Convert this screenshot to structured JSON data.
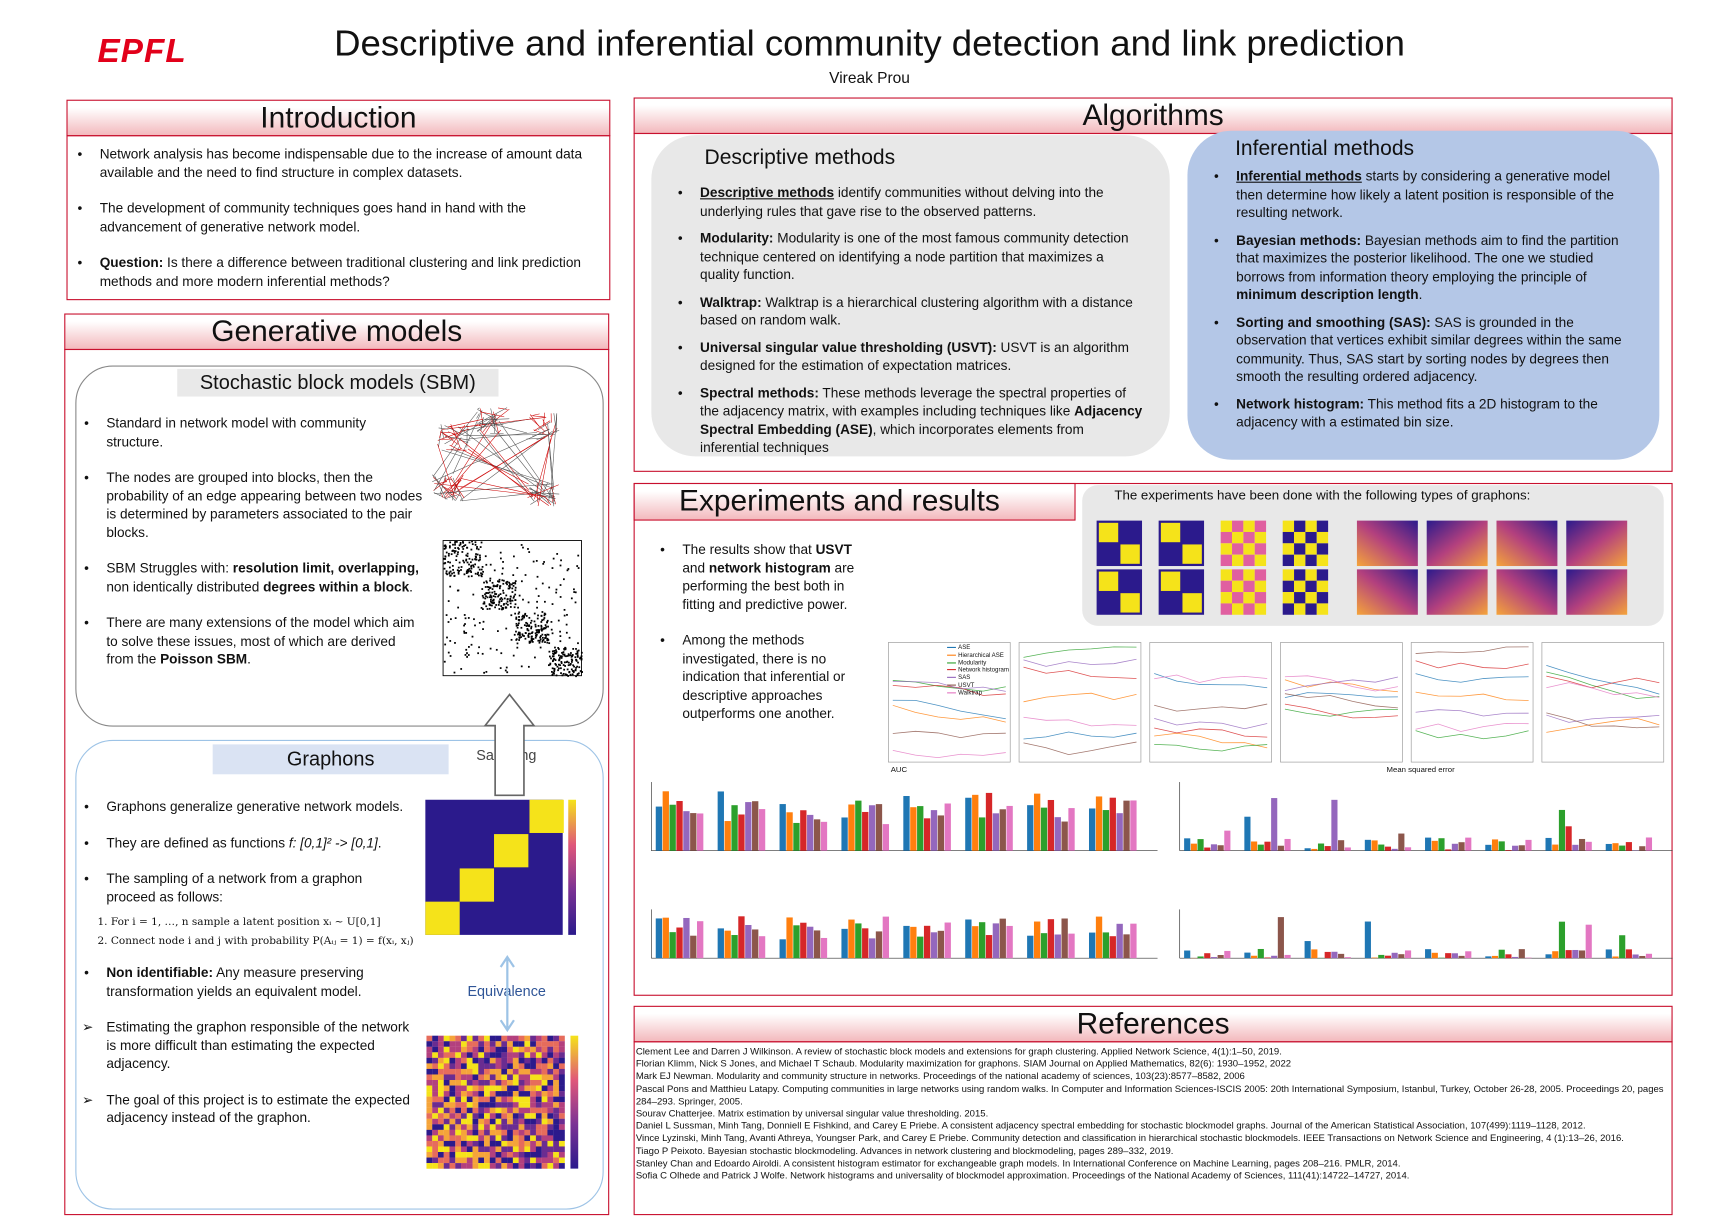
{
  "header": {
    "logo": "EPFL",
    "title": "Descriptive and inferential community detection and link prediction",
    "author": "Vireak Prou"
  },
  "introduction": {
    "heading": "Introduction",
    "bullets": [
      [
        "Network analysis has become indispensable due to the increase of amount data available and the need to find structure in complex datasets."
      ],
      [
        "The development of community techniques goes hand in hand with the advancement of generative network model."
      ],
      [
        {
          "text": "Question:",
          "bold": true
        },
        " Is there a difference between traditional clustering and link prediction methods and more modern inferential methods?"
      ]
    ]
  },
  "generative_models": {
    "heading": "Generative models",
    "sbm": {
      "heading": "Stochastic block models (SBM)",
      "bullets": [
        [
          "Standard in network model with community structure."
        ],
        [
          "The nodes are grouped into blocks, then the probability of an edge appearing between two nodes is determined by parameters associated to the pair blocks."
        ],
        [
          "SBM Struggles with: ",
          {
            "text": "resolution limit, overlapping,",
            "bold": true
          },
          " non identically distributed ",
          {
            "text": "degrees within a block",
            "bold": true
          },
          "."
        ],
        [
          "There are many extensions of the model which aim to solve these issues, most of which are derived from the ",
          {
            "text": "Poisson SBM",
            "bold": true
          },
          "."
        ]
      ]
    },
    "sampling_label": "Sampling",
    "graphons": {
      "heading": "Graphons",
      "bullets": [
        [
          "Graphons generalize generative network models."
        ],
        [
          "They are defined as functions ",
          {
            "text": "f: [0,1]² -> [0,1]",
            "italic": true
          },
          "."
        ],
        [
          "The sampling of a network from a graphon proceed as follows:"
        ]
      ],
      "steps": [
        "1.  For i = 1, …, n sample a latent position xᵢ ~ U[0,1]",
        "2.  Connect node i and j with probability P(Aᵢⱼ = 1) = f(xᵢ, xⱼ)"
      ],
      "bullets_after": [
        [
          {
            "text": "Non identifiable:",
            "bold": true
          },
          " Any measure preserving transformation yields an equivalent model."
        ]
      ],
      "arrow_bullets": [
        [
          "Estimating the graphon responsible of the network is more difficult than estimating the expected adjacency."
        ],
        [
          "The goal of this project is to estimate the expected adjacency instead of the graphon."
        ]
      ]
    },
    "equivalence_label": "Equivalence"
  },
  "algorithms": {
    "heading": "Algorithms",
    "descriptive": {
      "heading": "Descriptive methods",
      "bullets": [
        [
          {
            "text": "Descriptive methods",
            "bold": true,
            "underline": true
          },
          " identify communities without delving into the underlying rules that gave rise to the observed patterns."
        ],
        [
          {
            "text": "Modularity:",
            "bold": true
          },
          "  Modularity is one of the most famous community detection technique centered on identifying a node partition that maximizes a quality function."
        ],
        [
          {
            "text": " Walktrap:",
            "bold": true
          },
          " Walktrap is a hierarchical clustering algorithm with a distance based on random walk."
        ],
        [
          {
            "text": "Universal singular value  thresholding (USVT):",
            "bold": true
          },
          " USVT is an algorithm designed for the estimation of expectation matrices."
        ],
        [
          {
            "text": "Spectral methods:",
            "bold": true
          },
          " These methods leverage the spectral properties of the adjacency matrix, with examples including techniques like ",
          {
            "text": "Adjacency Spectral Embedding (ASE)",
            "bold": true
          },
          ", which incorporates elements from inferential techniques"
        ]
      ]
    },
    "inferential": {
      "heading": "Inferential methods",
      "bullets": [
        [
          {
            "text": "Inferential methods",
            "bold": true,
            "underline": true
          },
          " starts by considering a generative model then determine how likely a latent position is responsible of the resulting network."
        ],
        [
          {
            "text": " Bayesian methods:",
            "bold": true
          },
          " Bayesian methods aim to find the partition that maximizes the posterior likelihood. The one we studied borrows from information theory employing the principle of ",
          {
            "text": "minimum description length",
            "bold": true
          },
          "."
        ],
        [
          {
            "text": "Sorting and smoothing (SAS):",
            "bold": true
          },
          " SAS is grounded in the observation that vertices exhibit similar degrees within the same community. Thus, SAS start by sorting nodes by degrees then smooth the resulting ordered adjacency."
        ],
        [
          {
            "text": " Network histogram:",
            "bold": true
          },
          " This method fits a 2D histogram to the adjacency with a estimated bin size."
        ]
      ]
    }
  },
  "experiments": {
    "heading": "Experiments and results",
    "graphon_note": "The experiments have been done with the following types of graphons:",
    "bullets": [
      [
        "The results show that ",
        {
          "text": "USVT",
          "bold": true
        },
        " and ",
        {
          "text": "network histogram",
          "bold": true
        },
        " are performing the best both in fitting and predictive power."
      ],
      [
        "Among the methods investigated, there is no indication that inferential or descriptive approaches outperforms one another."
      ]
    ],
    "legend": [
      {
        "name": "ASE",
        "color": "#1f77b4"
      },
      {
        "name": "Hierarchical ASE",
        "color": "#ff7f0e"
      },
      {
        "name": "Modularity",
        "color": "#2ca02c"
      },
      {
        "name": "Network histogram",
        "color": "#d62728"
      },
      {
        "name": "SAS",
        "color": "#9467bd"
      },
      {
        "name": "USVT",
        "color": "#8c564b"
      },
      {
        "name": "Walktrap",
        "color": "#e377c2"
      }
    ],
    "auc_title": "AUC",
    "mse_title": "Mean squared error"
  },
  "references": {
    "heading": "References",
    "items": [
      "Clement Lee and Darren J Wilkinson. A review of stochastic block models and extensions for graph clustering. Applied Network Science, 4(1):1–50, 2019.",
      "Florian Klimm, Nick S Jones, and Michael T Schaub. Modularity maximization for graphons. SIAM Journal on Applied Mathematics, 82(6): 1930–1952, 2022",
      "Mark EJ Newman. Modularity and community structure in networks. Proceedings of the national academy of sciences, 103(23):8577–8582, 2006",
      "Pascal Pons and Matthieu Latapy. Computing communities in large networks using random walks. In Computer and Information Sciences-ISCIS 2005: 20th International Symposium, Istanbul, Turkey, October 26-28, 2005. Proceedings 20, pages 284–293. Springer, 2005.",
      "Sourav Chatterjee. Matrix estimation by universal singular value thresholding. 2015.",
      "Daniel L Sussman, Minh Tang, Donniell E Fishkind, and Carey E Priebe. A consistent adjacency spectral embedding for stochastic blockmodel graphs. Journal of the American Statistical Association, 107(499):1119–1128, 2012.",
      "Vince Lyzinski, Minh Tang, Avanti Athreya, Youngser Park, and Carey E Priebe. Community detection and classification in hierarchical stochastic blockmodels. IEEE Transactions on Network Science and Engineering, 4 (1):13–26, 2016.",
      "Tiago P Peixoto. Bayesian stochastic blockmodeling. Advances in network clustering and blockmodeling, pages 289–332, 2019.",
      "Stanley Chan and Edoardo Airoldi. A consistent histogram estimator for exchangeable graph models. In International Conference on Machine Learning, pages 208–216. PMLR, 2014.",
      "Sofia C Olhede and Patrick J Wolfe. Network histograms and universality of blockmodel approximation. Proceedings of the National Academy of Sciences, 111(41):14722–14727, 2014."
    ]
  }
}
